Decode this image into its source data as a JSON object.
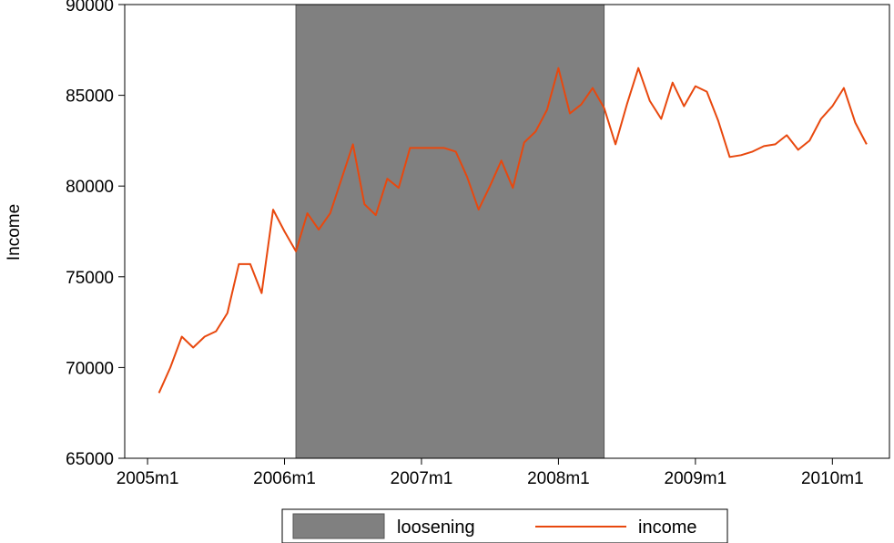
{
  "chart_data": {
    "type": "line",
    "ylabel": "Income",
    "xlabel": "",
    "ylim": [
      65000,
      90000
    ],
    "yticks": [
      65000,
      70000,
      75000,
      80000,
      85000,
      90000
    ],
    "xticks": [
      {
        "value": "2005-01",
        "label": "2005m1"
      },
      {
        "value": "2006-01",
        "label": "2006m1"
      },
      {
        "value": "2007-01",
        "label": "2007m1"
      },
      {
        "value": "2008-01",
        "label": "2008m1"
      },
      {
        "value": "2009-01",
        "label": "2009m1"
      },
      {
        "value": "2010-01",
        "label": "2010m1"
      }
    ],
    "xlim": [
      "2004-11",
      "2010-06"
    ],
    "grid": false,
    "legend_position": "bottom",
    "shaded_region": {
      "name": "loosening",
      "x_start": "2006-02",
      "x_end": "2008-05",
      "color": "#808080"
    },
    "series": [
      {
        "name": "income",
        "color": "#e8480e",
        "x": [
          "2005-02",
          "2005-03",
          "2005-04",
          "2005-05",
          "2005-06",
          "2005-07",
          "2005-08",
          "2005-09",
          "2005-10",
          "2005-11",
          "2005-12",
          "2006-01",
          "2006-02",
          "2006-03",
          "2006-04",
          "2006-05",
          "2006-06",
          "2006-07",
          "2006-08",
          "2006-09",
          "2006-10",
          "2006-11",
          "2006-12",
          "2007-01",
          "2007-02",
          "2007-03",
          "2007-04",
          "2007-05",
          "2007-06",
          "2007-07",
          "2007-08",
          "2007-09",
          "2007-10",
          "2007-11",
          "2007-12",
          "2008-01",
          "2008-02",
          "2008-03",
          "2008-04",
          "2008-05",
          "2008-06",
          "2008-07",
          "2008-08",
          "2008-09",
          "2008-10",
          "2008-11",
          "2008-12",
          "2009-01",
          "2009-02",
          "2009-03",
          "2009-04",
          "2009-05",
          "2009-06",
          "2009-07",
          "2009-08",
          "2009-09",
          "2009-10",
          "2009-11",
          "2009-12",
          "2010-01",
          "2010-02",
          "2010-03",
          "2010-04"
        ],
        "values": [
          68600,
          70000,
          71700,
          71100,
          71700,
          72000,
          73000,
          75700,
          75700,
          74100,
          78700,
          77500,
          76400,
          78500,
          77600,
          78500,
          80400,
          82300,
          79000,
          78400,
          80400,
          79900,
          82100,
          82100,
          82100,
          82100,
          81900,
          80500,
          78700,
          80000,
          81400,
          79900,
          82400,
          83000,
          84200,
          86500,
          84000,
          84500,
          85400,
          84300,
          82300,
          84500,
          86500,
          84700,
          83700,
          85700,
          84400,
          85500,
          85200,
          83600,
          81600,
          81700,
          81900,
          82200,
          82300,
          82800,
          82000,
          82500,
          83700,
          84400,
          85400,
          83500,
          82300
        ]
      }
    ]
  }
}
